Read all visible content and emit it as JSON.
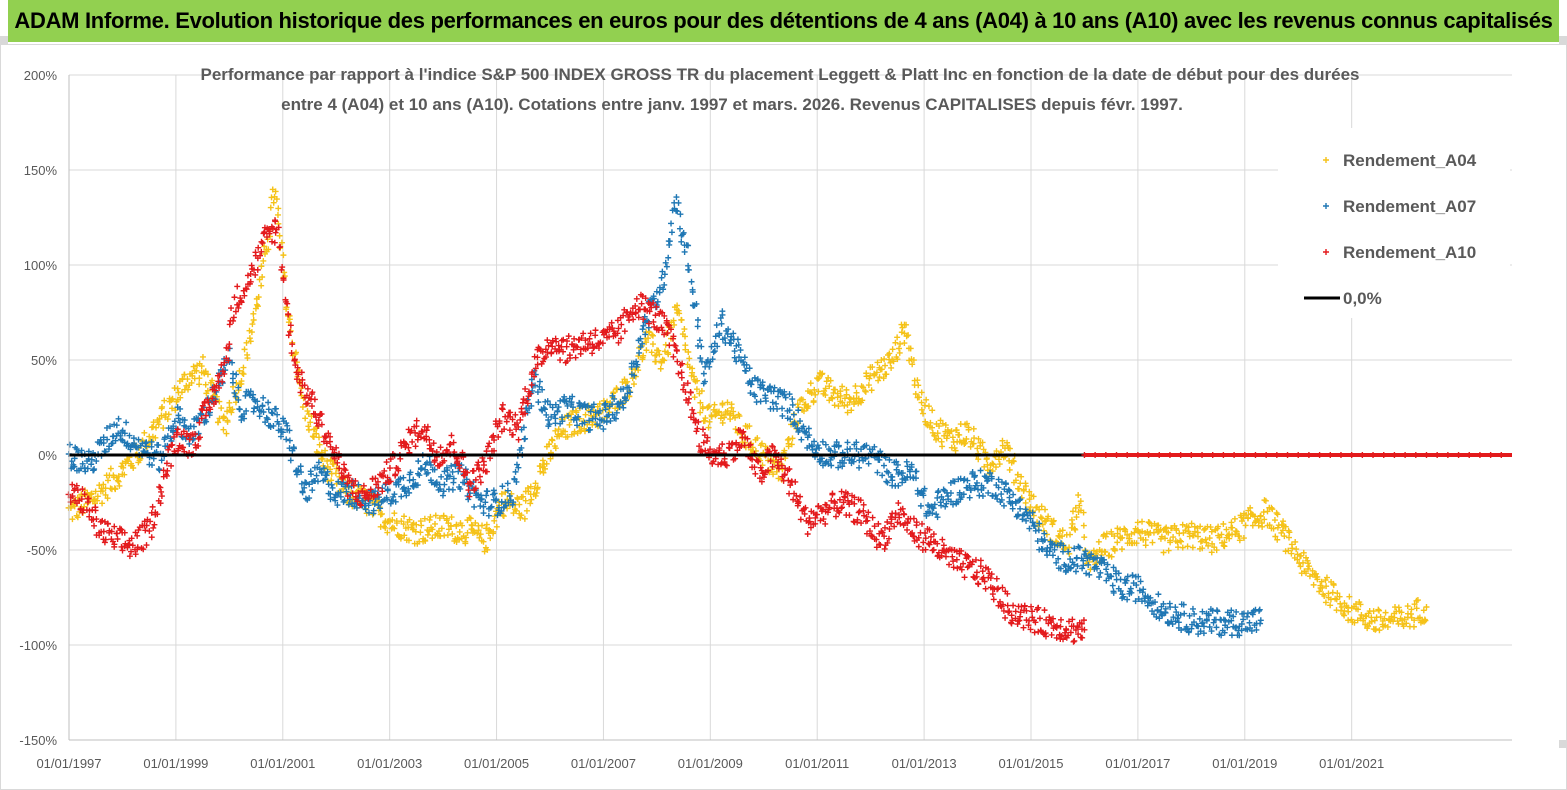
{
  "banner": {
    "title": "ADAM Informe. Evolution historique des performances en euros pour des détentions de 4 ans (A04) à 10 ans (A10) avec les revenus connus capitalisés",
    "background": "#92d050"
  },
  "chart_data": {
    "type": "scatter",
    "title_line1": "Performance par rapport à l'indice S&P 500 INDEX GROSS TR  du placement Leggett & Platt Inc en fonction de la date de début pour des durées",
    "title_line2": "entre 4 (A04) et 10 ans (A10). Cotations entre janv. 1997 et mars. 2026. Revenus CAPITALISES depuis févr. 1997.",
    "ylim": [
      -150,
      200
    ],
    "y_ticks": [
      200,
      150,
      100,
      50,
      0,
      -50,
      -100,
      -150
    ],
    "y_tick_labels": [
      "200%",
      "150%",
      "100%",
      "50%",
      "0%",
      "-50%",
      "-100%",
      "-150%"
    ],
    "xlim": [
      1997.0,
      2024.0
    ],
    "x_ticks": [
      1997,
      1999,
      2001,
      2003,
      2005,
      2007,
      2009,
      2011,
      2013,
      2015,
      2017,
      2019,
      2021
    ],
    "x_tick_labels": [
      "01/01/1997",
      "01/01/1999",
      "01/01/2001",
      "01/01/2003",
      "01/01/2005",
      "01/01/2007",
      "01/01/2009",
      "01/01/2011",
      "01/01/2013",
      "01/01/2015",
      "01/01/2017",
      "01/01/2019",
      "01/01/2021"
    ],
    "legend": [
      {
        "name": "Rendement_A04",
        "color": "#f5c218",
        "marker": "+"
      },
      {
        "name": "Rendement_A07",
        "color": "#1f77b4",
        "marker": "+"
      },
      {
        "name": "Rendement_A10",
        "color": "#e31a1c",
        "marker": "+"
      },
      {
        "name": "0,0%",
        "color": "#000000",
        "marker": "line"
      }
    ],
    "series": [
      {
        "name": "Rendement_A04",
        "color": "#f5c218",
        "x": [
          1997.0,
          1997.5,
          1998.0,
          1998.4,
          1998.8,
          1999.2,
          1999.5,
          1999.9,
          2000.3,
          2000.65,
          2000.85,
          2001.1,
          2001.4,
          2001.8,
          2002.2,
          2002.6,
          2003.0,
          2003.5,
          2004.0,
          2004.5,
          2004.8,
          2005.1,
          2005.5,
          2005.8,
          2006.2,
          2006.5,
          2007.0,
          2007.5,
          2007.8,
          2008.1,
          2008.4,
          2008.7,
          2009.0,
          2009.3,
          2009.6,
          2010.0,
          2010.3,
          2010.6,
          2011.0,
          2011.3,
          2011.6,
          2012.0,
          2012.4,
          2012.65,
          2012.9,
          2013.2,
          2013.5,
          2013.8,
          2014.2,
          2014.5,
          2014.8,
          2015.1,
          2015.4,
          2015.7,
          2015.9,
          2016.1,
          2016.3,
          2016.6,
          2017.0,
          2017.5,
          2018.0,
          2018.4,
          2018.8,
          2019.1,
          2019.4,
          2019.8,
          2020.2,
          2020.5,
          2021.0,
          2021.5,
          2022.0,
          2022.4
        ],
        "values": [
          -30,
          -22,
          -8,
          5,
          22,
          40,
          45,
          15,
          50,
          100,
          140,
          75,
          25,
          -5,
          -20,
          -25,
          -35,
          -40,
          -38,
          -40,
          -45,
          -25,
          -28,
          -10,
          12,
          18,
          22,
          38,
          60,
          50,
          75,
          35,
          18,
          25,
          12,
          0,
          -10,
          20,
          38,
          32,
          28,
          40,
          50,
          68,
          30,
          15,
          8,
          12,
          -5,
          5,
          -15,
          -30,
          -40,
          -48,
          -25,
          -60,
          -50,
          -45,
          -40,
          -45,
          -42,
          -45,
          -40,
          -35,
          -30,
          -45,
          -62,
          -70,
          -82,
          -88,
          -86,
          -80
        ]
      },
      {
        "name": "Rendement_A07",
        "color": "#1f77b4",
        "x": [
          1997.0,
          1997.4,
          1997.9,
          1998.3,
          1998.7,
          1999.0,
          1999.3,
          1999.7,
          2000.0,
          2000.2,
          2000.5,
          2000.8,
          2001.1,
          2001.4,
          2001.7,
          2002.0,
          2002.3,
          2002.7,
          2003.0,
          2003.3,
          2003.7,
          2004.0,
          2004.3,
          2004.7,
          2005.0,
          2005.3,
          2005.7,
          2006.0,
          2006.3,
          2006.7,
          2007.0,
          2007.4,
          2007.8,
          2008.1,
          2008.35,
          2008.6,
          2008.9,
          2009.2,
          2009.5,
          2009.8,
          2010.2,
          2010.5,
          2010.9,
          2011.2,
          2011.6,
          2012.0,
          2012.4,
          2012.8,
          2013.1,
          2013.5,
          2013.9,
          2014.3,
          2014.7,
          2015.0,
          2015.3,
          2015.7,
          2016.0,
          2016.3,
          2016.7,
          2017.0,
          2017.4,
          2017.8,
          2018.1,
          2018.6,
          2019.0,
          2019.3
        ],
        "values": [
          0,
          -5,
          15,
          5,
          -2,
          20,
          10,
          30,
          50,
          25,
          28,
          20,
          10,
          -20,
          -10,
          -20,
          -20,
          -25,
          -20,
          -15,
          -5,
          -15,
          -10,
          -25,
          -25,
          -20,
          40,
          20,
          25,
          20,
          20,
          30,
          70,
          90,
          135,
          100,
          40,
          70,
          55,
          35,
          30,
          25,
          5,
          0,
          0,
          0,
          -10,
          -10,
          -30,
          -20,
          -15,
          -15,
          -25,
          -35,
          -50,
          -55,
          -55,
          -60,
          -70,
          -70,
          -80,
          -85,
          -88,
          -88,
          -88,
          -87
        ]
      },
      {
        "name": "Rendement_A10",
        "color": "#e31a1c",
        "x": [
          1997.0,
          1997.3,
          1997.6,
          1997.9,
          1998.2,
          1998.5,
          1998.8,
          1999.0,
          1999.3,
          1999.6,
          1999.9,
          2000.1,
          2000.4,
          2000.7,
          2000.9,
          2001.1,
          2001.3,
          2001.6,
          2001.9,
          2002.2,
          2002.5,
          2002.8,
          2003.1,
          2003.3,
          2003.6,
          2003.9,
          2004.2,
          2004.5,
          2004.8,
          2005.1,
          2005.4,
          2005.7,
          2006.0,
          2006.3,
          2006.7,
          2007.0,
          2007.3,
          2007.6,
          2007.9,
          2008.2,
          2008.5,
          2008.8,
          2009.0,
          2009.3,
          2009.6,
          2009.9,
          2010.2,
          2010.5,
          2010.8,
          2011.1,
          2011.4,
          2011.8,
          2012.2,
          2012.5,
          2012.8,
          2013.1,
          2013.5,
          2013.9,
          2014.2,
          2014.6,
          2014.9,
          2015.2,
          2015.5,
          2015.8,
          2016.0
        ],
        "values": [
          -20,
          -25,
          -40,
          -45,
          -48,
          -40,
          -10,
          10,
          5,
          25,
          45,
          80,
          95,
          115,
          120,
          70,
          40,
          25,
          5,
          -15,
          -22,
          -15,
          -5,
          5,
          15,
          0,
          5,
          -15,
          -5,
          20,
          15,
          45,
          60,
          55,
          60,
          60,
          65,
          80,
          75,
          65,
          40,
          10,
          0,
          0,
          10,
          -10,
          0,
          -15,
          -35,
          -30,
          -25,
          -30,
          -45,
          -30,
          -40,
          -45,
          -55,
          -60,
          -65,
          -82,
          -85,
          -88,
          -90,
          -92,
          -92
        ]
      }
    ]
  }
}
